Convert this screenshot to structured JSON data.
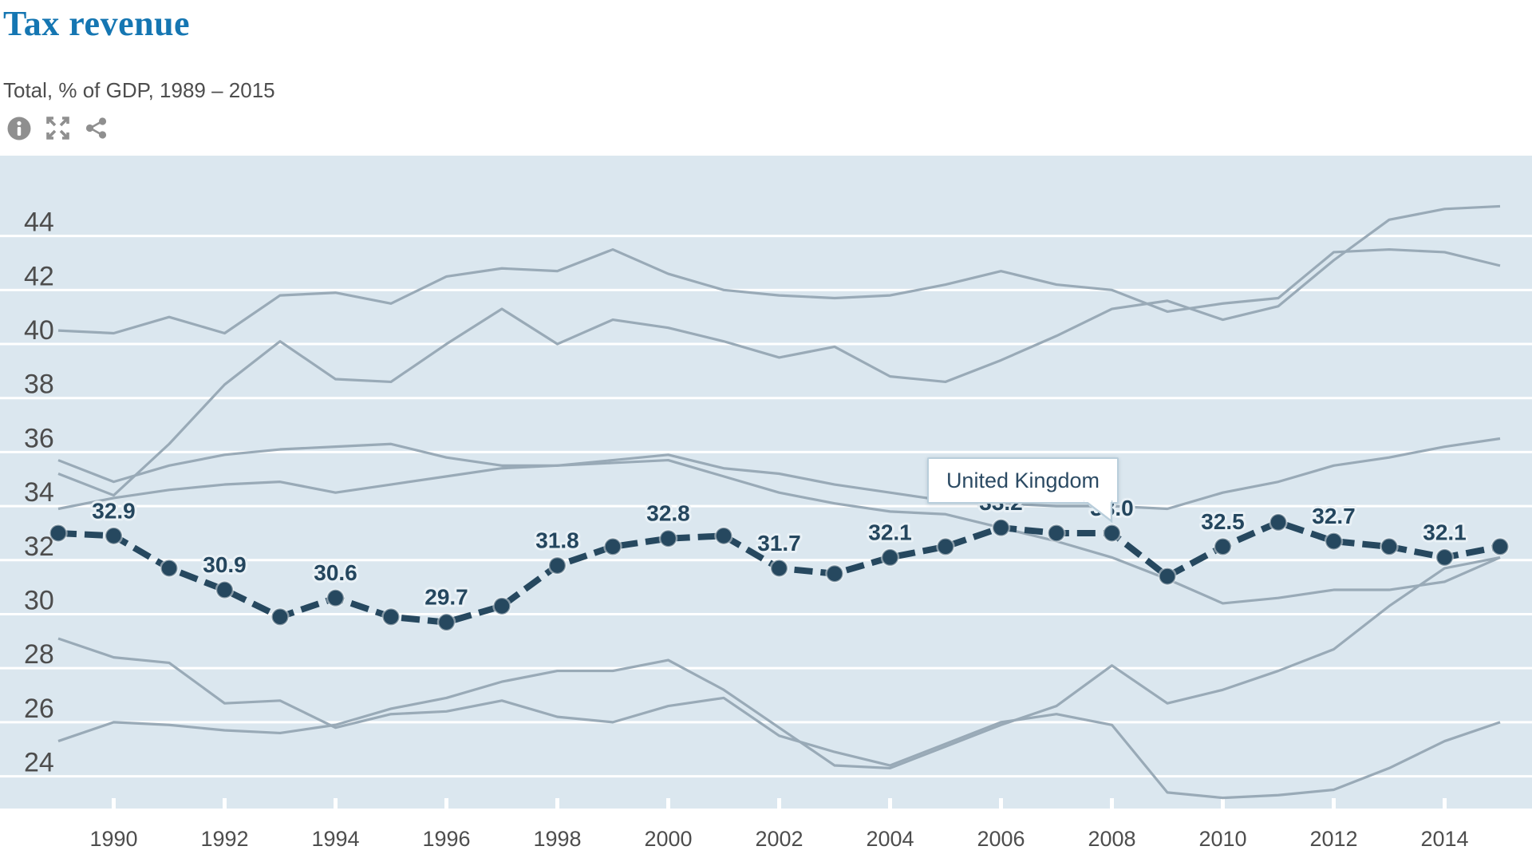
{
  "header": {
    "title": "Tax revenue",
    "subtitle": "Total, % of GDP, 1989 – 2015",
    "icons": [
      {
        "name": "info-icon"
      },
      {
        "name": "expand-icon"
      },
      {
        "name": "share-icon"
      }
    ]
  },
  "tooltip": {
    "label": "United Kingdom"
  },
  "colors": {
    "title_blue": "#1576b2",
    "highlight": "#26485f",
    "context_gray": "#99aab7",
    "plot_bg": "#dbe7ef",
    "grid": "#ffffff",
    "axis_text": "#4d4d4d",
    "icon_gray": "#8f8f8f",
    "tooltip_border": "#b9cedb"
  },
  "chart_data": {
    "type": "line",
    "title": "Tax revenue",
    "subtitle": "Total, % of GDP, 1989 – 2015",
    "xlabel": "",
    "ylabel": "% of GDP",
    "x": [
      1989,
      1990,
      1991,
      1992,
      1993,
      1994,
      1995,
      1996,
      1997,
      1998,
      1999,
      2000,
      2001,
      2002,
      2003,
      2004,
      2005,
      2006,
      2007,
      2008,
      2009,
      2010,
      2011,
      2012,
      2013,
      2014,
      2015
    ],
    "x_tick_labels": [
      "1990",
      "1992",
      "1994",
      "1996",
      "1998",
      "2000",
      "2002",
      "2004",
      "2006",
      "2008",
      "2010",
      "2012",
      "2014"
    ],
    "y_ticks": [
      44,
      42,
      40,
      38,
      36,
      34,
      32,
      30,
      28,
      26,
      24
    ],
    "ylim": [
      22.8,
      47.0
    ],
    "grid": true,
    "legend_position": "none",
    "series": [
      {
        "name": "United Kingdom",
        "role": "highlight",
        "values": [
          33.0,
          32.9,
          31.7,
          30.9,
          29.9,
          30.6,
          29.9,
          29.7,
          30.3,
          31.8,
          32.5,
          32.8,
          32.9,
          31.7,
          31.5,
          32.1,
          32.5,
          33.2,
          33.0,
          33.0,
          31.4,
          32.5,
          33.4,
          32.7,
          32.5,
          32.1,
          32.5
        ],
        "point_labels": {
          "1990": "32.9",
          "1992": "30.9",
          "1994": "30.6",
          "1996": "29.7",
          "1998": "31.8",
          "2000": "32.8",
          "2002": "31.7",
          "2004": "32.1",
          "2006": "33.2",
          "2008": "33.0",
          "2010": "32.5",
          "2012": "32.7",
          "2014": "32.1"
        }
      },
      {
        "name": "context-1",
        "role": "context",
        "values": [
          40.5,
          40.4,
          41.0,
          40.4,
          41.8,
          41.9,
          41.5,
          42.5,
          42.8,
          42.7,
          43.5,
          42.6,
          42.0,
          41.8,
          41.7,
          41.8,
          42.2,
          42.7,
          42.2,
          42.0,
          41.2,
          41.5,
          41.7,
          43.4,
          43.5,
          43.4,
          42.9
        ]
      },
      {
        "name": "context-2",
        "role": "context",
        "values": [
          35.2,
          34.4,
          36.3,
          38.5,
          40.1,
          38.7,
          38.6,
          40.0,
          41.3,
          40.0,
          40.9,
          40.6,
          40.1,
          39.5,
          39.9,
          38.8,
          38.6,
          39.4,
          40.3,
          41.3,
          41.6,
          40.9,
          41.4,
          43.1,
          44.6,
          45.0,
          45.1
        ]
      },
      {
        "name": "context-3",
        "role": "context",
        "values": [
          35.7,
          34.9,
          35.5,
          35.9,
          36.1,
          36.2,
          36.3,
          35.8,
          35.5,
          35.5,
          35.7,
          35.9,
          35.4,
          35.2,
          34.8,
          34.5,
          34.2,
          34.1,
          34.0,
          34.0,
          33.9,
          34.5,
          34.9,
          35.5,
          35.8,
          36.2,
          36.5
        ]
      },
      {
        "name": "context-4",
        "role": "context",
        "values": [
          33.9,
          34.3,
          34.6,
          34.8,
          34.9,
          34.5,
          34.8,
          35.1,
          35.4,
          35.5,
          35.6,
          35.7,
          35.1,
          34.5,
          34.1,
          33.8,
          33.7,
          33.2,
          32.7,
          32.1,
          31.3,
          30.4,
          30.6,
          30.9,
          30.9,
          31.2,
          32.1
        ]
      },
      {
        "name": "context-5",
        "role": "context",
        "values": [
          29.1,
          28.4,
          28.2,
          26.7,
          26.8,
          25.8,
          26.3,
          26.4,
          26.8,
          26.2,
          26.0,
          26.6,
          26.9,
          25.5,
          24.9,
          24.4,
          25.2,
          26.0,
          26.3,
          25.9,
          23.4,
          23.2,
          23.3,
          23.5,
          24.3,
          25.3,
          26.0
        ]
      },
      {
        "name": "context-6",
        "role": "context",
        "values": [
          25.3,
          26.0,
          25.9,
          25.7,
          25.6,
          25.9,
          26.5,
          26.9,
          27.5,
          27.9,
          27.9,
          28.3,
          27.2,
          25.8,
          24.4,
          24.3,
          25.1,
          25.9,
          26.6,
          28.1,
          26.7,
          27.2,
          27.9,
          28.7,
          30.3,
          31.7,
          32.1
        ]
      }
    ]
  }
}
